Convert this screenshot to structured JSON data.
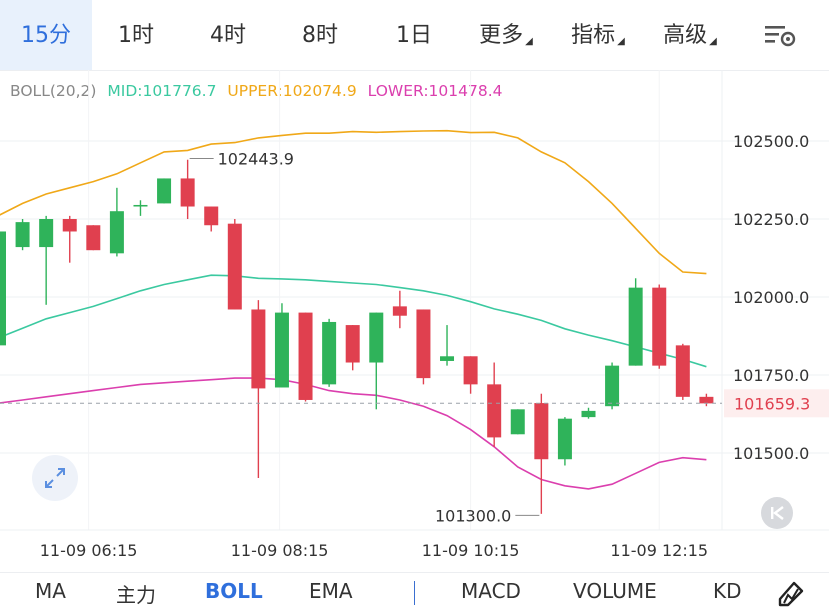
{
  "timeframes": [
    {
      "label": "15分",
      "active": true
    },
    {
      "label": "1时",
      "active": false
    },
    {
      "label": "4时",
      "active": false
    },
    {
      "label": "8时",
      "active": false
    },
    {
      "label": "1日",
      "active": false
    },
    {
      "label": "更多",
      "active": false,
      "dropdown": true
    },
    {
      "label": "指标",
      "active": false,
      "dropdown": true
    },
    {
      "label": "高级",
      "active": false,
      "dropdown": true
    }
  ],
  "legend": {
    "name": "BOLL(20,2)",
    "mid": "MID:101776.7",
    "upper": "UPPER:102074.9",
    "lower": "LOWER:101478.4"
  },
  "colors": {
    "up": "#2fb35a",
    "down": "#e0404f",
    "mid": "#3bc9a0",
    "upper": "#f0a818",
    "lower": "#db3fae",
    "accent": "#2f6fdc"
  },
  "price_axis": [
    "102500.0",
    "102250.0",
    "102000.0",
    "101750.0",
    "101500.0"
  ],
  "current_price": "101659.3",
  "time_axis": [
    "11-09 06:15",
    "11-09 08:15",
    "11-09 10:15",
    "11-09 12:15"
  ],
  "annotations": {
    "high": "102443.9",
    "low": "101300.0"
  },
  "chart_data": {
    "type": "candlestick",
    "yrange": [
      101200,
      102630
    ],
    "candles": [
      {
        "o": 101845,
        "c": 102210,
        "h": 102230,
        "l": 101770
      },
      {
        "o": 102160,
        "c": 102240,
        "h": 102250,
        "l": 102150
      },
      {
        "o": 102160,
        "c": 102250,
        "h": 102260,
        "l": 101975
      },
      {
        "o": 102250,
        "c": 102210,
        "h": 102260,
        "l": 102110
      },
      {
        "o": 102230,
        "c": 102150,
        "h": 102230,
        "l": 102150
      },
      {
        "o": 102140,
        "c": 102275,
        "h": 102350,
        "l": 102130
      },
      {
        "o": 102290,
        "c": 102295,
        "h": 102310,
        "l": 102260
      },
      {
        "o": 102300,
        "c": 102380,
        "h": 102380,
        "l": 102300
      },
      {
        "o": 102380,
        "c": 102290,
        "h": 102440,
        "l": 102250
      },
      {
        "o": 102290,
        "c": 102230,
        "h": 102290,
        "l": 102210
      },
      {
        "o": 102235,
        "c": 101960,
        "h": 102250,
        "l": 101960
      },
      {
        "o": 101960,
        "c": 101707,
        "h": 101990,
        "l": 101420
      },
      {
        "o": 101710,
        "c": 101950,
        "h": 101980,
        "l": 101710
      },
      {
        "o": 101950,
        "c": 101670,
        "h": 101950,
        "l": 101665
      },
      {
        "o": 101720,
        "c": 101920,
        "h": 101930,
        "l": 101712
      },
      {
        "o": 101910,
        "c": 101790,
        "h": 101910,
        "l": 101765
      },
      {
        "o": 101790,
        "c": 101950,
        "h": 101950,
        "l": 101640
      },
      {
        "o": 101970,
        "c": 101940,
        "h": 102020,
        "l": 101900
      },
      {
        "o": 101960,
        "c": 101740,
        "h": 101960,
        "l": 101720
      },
      {
        "o": 101795,
        "c": 101810,
        "h": 101910,
        "l": 101780
      },
      {
        "o": 101810,
        "c": 101720,
        "h": 101810,
        "l": 101690
      },
      {
        "o": 101720,
        "c": 101550,
        "h": 101790,
        "l": 101520
      },
      {
        "o": 101560,
        "c": 101640,
        "h": 101640,
        "l": 101560
      },
      {
        "o": 101660,
        "c": 101480,
        "h": 101690,
        "l": 101305
      },
      {
        "o": 101480,
        "c": 101610,
        "h": 101615,
        "l": 101460
      },
      {
        "o": 101615,
        "c": 101635,
        "h": 101645,
        "l": 101610
      },
      {
        "o": 101650,
        "c": 101780,
        "h": 101790,
        "l": 101640
      },
      {
        "o": 101780,
        "c": 102030,
        "h": 102060,
        "l": 101780
      },
      {
        "o": 102030,
        "c": 101780,
        "h": 102040,
        "l": 101770
      },
      {
        "o": 101845,
        "c": 101680,
        "h": 101850,
        "l": 101670
      },
      {
        "o": 101680,
        "c": 101659,
        "h": 101690,
        "l": 101650
      }
    ],
    "upper": [
      102262,
      102300,
      102330,
      102350,
      102370,
      102395,
      102430,
      102465,
      102470,
      102490,
      102495,
      102510,
      102518,
      102525,
      102525,
      102530,
      102528,
      102530,
      102532,
      102533,
      102527,
      102528,
      102510,
      102465,
      102430,
      102370,
      102300,
      102220,
      102140,
      102080,
      102074.9
    ],
    "mid": [
      101870,
      101900,
      101930,
      101950,
      101970,
      101995,
      102020,
      102040,
      102055,
      102070,
      102068,
      102060,
      102058,
      102055,
      102050,
      102045,
      102040,
      102030,
      102020,
      102005,
      101985,
      101962,
      101945,
      101925,
      101898,
      101878,
      101860,
      101840,
      101820,
      101800,
      101776.7
    ],
    "lower": [
      101660,
      101670,
      101680,
      101690,
      101700,
      101710,
      101720,
      101725,
      101730,
      101735,
      101740,
      101740,
      101735,
      101720,
      101700,
      101690,
      101685,
      101670,
      101650,
      101620,
      101575,
      101520,
      101455,
      101415,
      101395,
      101385,
      101400,
      101435,
      101470,
      101485,
      101478.4
    ]
  },
  "indicator_tabs": [
    {
      "label": "MA",
      "active": false
    },
    {
      "label": "主力",
      "active": false
    },
    {
      "label": "BOLL",
      "active": true
    },
    {
      "label": "EMA",
      "active": false
    },
    {
      "label": "MACD",
      "active": false
    },
    {
      "label": "VOLUME",
      "active": false
    },
    {
      "label": "KD",
      "active": false
    }
  ],
  "icons": {
    "settings": "chart-settings-icon",
    "expand": "expand-icon",
    "reset": "reset-icon",
    "draw": "drawing-tool-icon"
  }
}
